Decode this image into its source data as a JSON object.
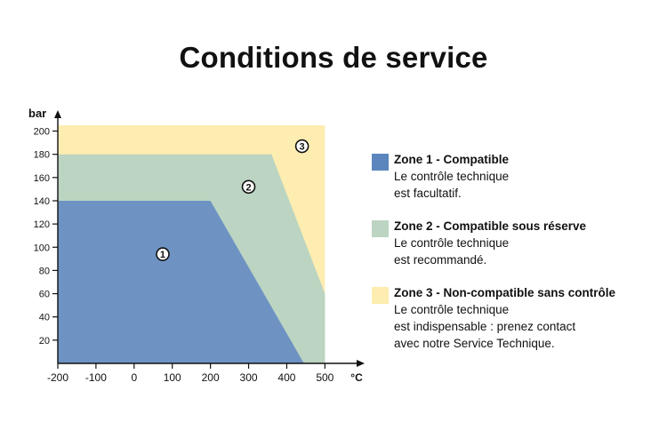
{
  "title": "Conditions de service",
  "chart_data": {
    "type": "area",
    "xlabel": "°C",
    "ylabel": "bar",
    "xlim": [
      -200,
      505
    ],
    "ylim": [
      0,
      205
    ],
    "x_ticks": [
      -200,
      -100,
      0,
      100,
      200,
      300,
      400,
      500
    ],
    "y_ticks": [
      20,
      40,
      60,
      80,
      100,
      120,
      140,
      160,
      180,
      200
    ],
    "grid": false,
    "zones": [
      {
        "id": "3",
        "name": "Zone 3 - Non-compatible sans contrôle",
        "color": "#fdedb0",
        "polygon": [
          [
            -200,
            0
          ],
          [
            -200,
            205
          ],
          [
            500,
            205
          ],
          [
            500,
            0
          ]
        ],
        "marker_at": [
          440,
          187
        ]
      },
      {
        "id": "2",
        "name": "Zone 2 - Compatible sous réserve",
        "color": "#bcd4c2",
        "polygon": [
          [
            -200,
            0
          ],
          [
            -200,
            180
          ],
          [
            360,
            180
          ],
          [
            500,
            60
          ],
          [
            500,
            0
          ]
        ],
        "marker_at": [
          300,
          152
        ]
      },
      {
        "id": "1",
        "name": "Zone 1 - Compatible",
        "color": "#6e93c3",
        "polygon": [
          [
            -200,
            0
          ],
          [
            -200,
            140
          ],
          [
            200,
            140
          ],
          [
            445,
            0
          ]
        ],
        "marker_at": [
          75,
          94
        ]
      }
    ]
  },
  "legend": [
    {
      "title": "Zone 1 - Compatible",
      "desc": "Le contrôle technique\nest facultatif.",
      "color": "#5b86bd"
    },
    {
      "title": "Zone 2 - Compatible sous réserve",
      "desc": "Le contrôle technique\nest recommandé.",
      "color": "#bcd4c2"
    },
    {
      "title": "Zone 3 - Non-compatible sans contrôle",
      "desc": "Le contrôle technique\nest indispensable : prenez contact\navec notre Service Technique.",
      "color": "#fdedb0"
    }
  ]
}
